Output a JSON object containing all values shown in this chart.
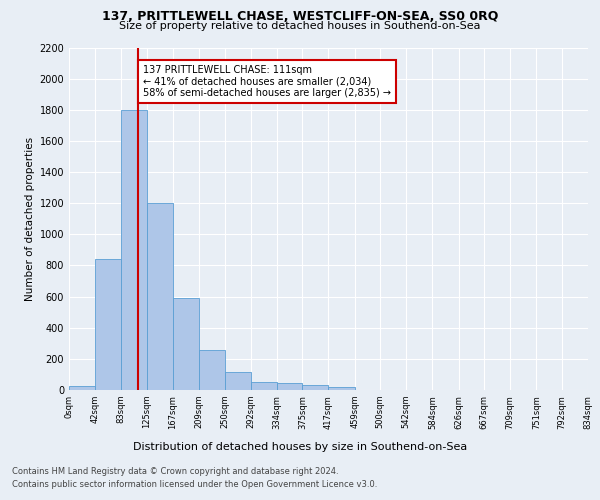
{
  "title": "137, PRITTLEWELL CHASE, WESTCLIFF-ON-SEA, SS0 0RQ",
  "subtitle": "Size of property relative to detached houses in Southend-on-Sea",
  "xlabel": "Distribution of detached houses by size in Southend-on-Sea",
  "ylabel": "Number of detached properties",
  "footer_line1": "Contains HM Land Registry data © Crown copyright and database right 2024.",
  "footer_line2": "Contains public sector information licensed under the Open Government Licence v3.0.",
  "bar_edges": [
    0,
    42,
    83,
    125,
    167,
    209,
    250,
    292,
    334,
    375,
    417,
    459,
    500,
    542,
    584,
    626,
    667,
    709,
    751,
    792,
    834
  ],
  "bar_heights": [
    25,
    840,
    1800,
    1200,
    590,
    260,
    115,
    50,
    45,
    30,
    20,
    0,
    0,
    0,
    0,
    0,
    0,
    0,
    0,
    0
  ],
  "bar_color": "#aec6e8",
  "bar_edge_color": "#5a9fd4",
  "property_size": 111,
  "vline_color": "#cc0000",
  "annotation_text": "137 PRITTLEWELL CHASE: 111sqm\n← 41% of detached houses are smaller (2,034)\n58% of semi-detached houses are larger (2,835) →",
  "annotation_box_color": "#cc0000",
  "ylim": [
    0,
    2200
  ],
  "yticks": [
    0,
    200,
    400,
    600,
    800,
    1000,
    1200,
    1400,
    1600,
    1800,
    2000,
    2200
  ],
  "bg_color": "#e8eef5",
  "axes_bg_color": "#e8eef5",
  "grid_color": "#ffffff",
  "tick_labels": [
    "0sqm",
    "42sqm",
    "83sqm",
    "125sqm",
    "167sqm",
    "209sqm",
    "250sqm",
    "292sqm",
    "334sqm",
    "375sqm",
    "417sqm",
    "459sqm",
    "500sqm",
    "542sqm",
    "584sqm",
    "626sqm",
    "667sqm",
    "709sqm",
    "751sqm",
    "792sqm",
    "834sqm"
  ],
  "title_fontsize": 9,
  "subtitle_fontsize": 8,
  "ylabel_fontsize": 7.5,
  "xlabel_fontsize": 8,
  "ytick_fontsize": 7,
  "xtick_fontsize": 6,
  "footer_fontsize": 6,
  "annotation_fontsize": 7
}
